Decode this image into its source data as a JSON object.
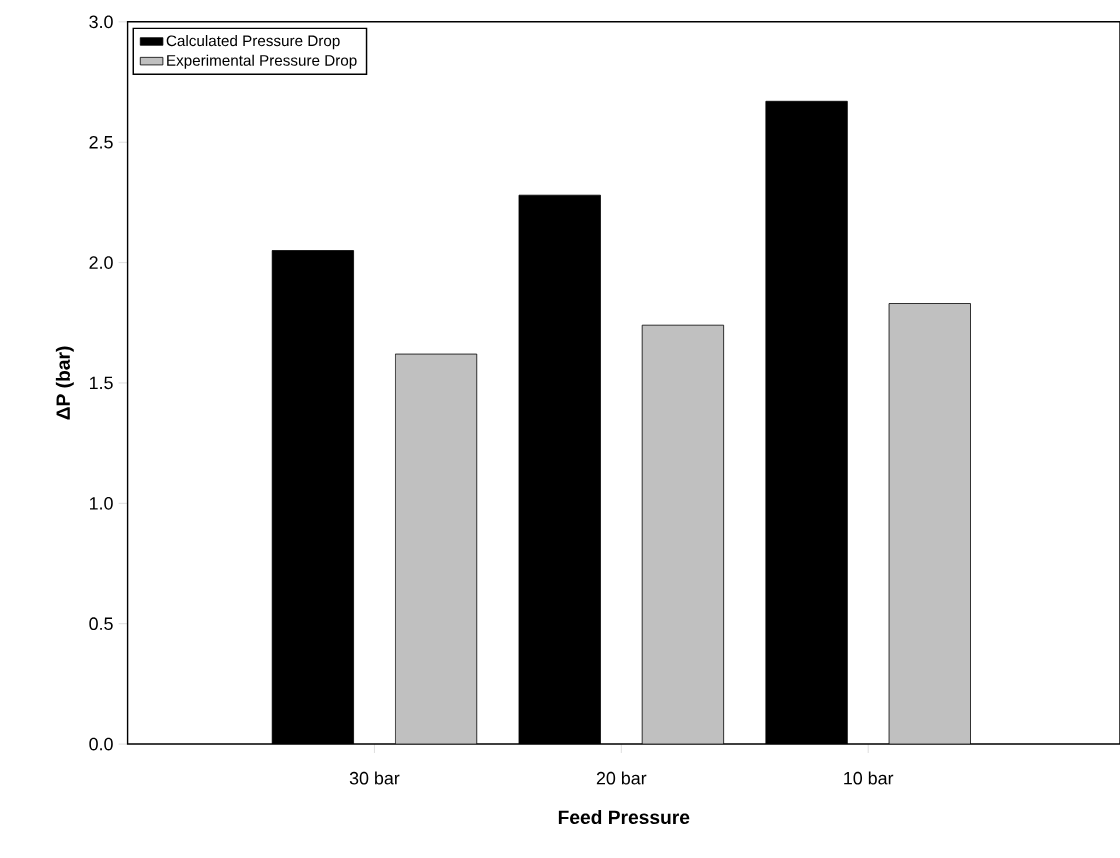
{
  "chart_data": {
    "type": "bar",
    "xlabel": "Feed Pressure",
    "ylabel": "ΔP (bar)",
    "categories": [
      "30 bar",
      "20 bar",
      "10 bar"
    ],
    "series": [
      {
        "name": "Calculated Pressure Drop",
        "color": "#000000",
        "values": [
          2.05,
          2.28,
          2.67
        ]
      },
      {
        "name": "Experimental Pressure Drop",
        "color": "#c0c0c0",
        "values": [
          1.62,
          1.74,
          1.83
        ]
      }
    ],
    "ylim": [
      0,
      3
    ],
    "yticks": [
      {
        "value": 0,
        "label": "0.0"
      },
      0.5,
      {
        "value": 1,
        "label": "1.0"
      },
      1.5,
      {
        "value": 2,
        "label": "2.0"
      },
      2.5,
      {
        "value": 3,
        "label": "3.0"
      }
    ],
    "grid": false,
    "legend": "top left"
  }
}
